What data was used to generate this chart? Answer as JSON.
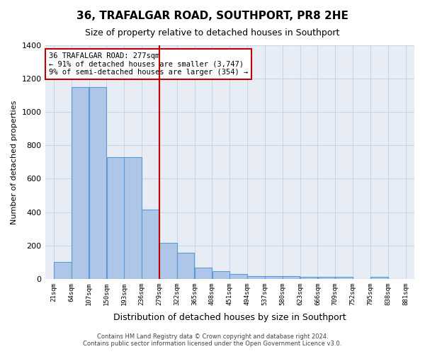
{
  "title": "36, TRAFALGAR ROAD, SOUTHPORT, PR8 2HE",
  "subtitle": "Size of property relative to detached houses in Southport",
  "xlabel": "Distribution of detached houses by size in Southport",
  "ylabel": "Number of detached properties",
  "footer_line1": "Contains HM Land Registry data © Crown copyright and database right 2024.",
  "footer_line2": "Contains public sector information licensed under the Open Government Licence v3.0.",
  "annotation_line1": "36 TRAFALGAR ROAD: 277sqm",
  "annotation_line2": "← 91% of detached houses are smaller (3,747)",
  "annotation_line3": "9% of semi-detached houses are larger (354) →",
  "property_size": 277,
  "bar_left_edges": [
    21,
    64,
    107,
    150,
    193,
    236,
    279,
    322,
    365,
    408,
    451,
    494,
    537,
    580,
    623,
    666,
    709,
    752,
    795,
    838
  ],
  "bar_widths": [
    43,
    43,
    43,
    43,
    43,
    43,
    43,
    43,
    43,
    43,
    43,
    43,
    43,
    43,
    43,
    43,
    43,
    43,
    43,
    43
  ],
  "bar_heights": [
    100,
    1150,
    1150,
    730,
    730,
    415,
    215,
    155,
    65,
    45,
    30,
    18,
    18,
    18,
    10,
    10,
    10,
    0,
    10,
    0
  ],
  "bar_color": "#aec6e8",
  "bar_edge_color": "#5b9bd5",
  "vline_x": 279,
  "vline_color": "#c00000",
  "grid_color": "#c8d4e8",
  "background_color": "#e8edf5",
  "ylim": [
    0,
    1400
  ],
  "yticks": [
    0,
    200,
    400,
    600,
    800,
    1000,
    1200,
    1400
  ],
  "xtick_labels": [
    "21sqm",
    "64sqm",
    "107sqm",
    "150sqm",
    "193sqm",
    "236sqm",
    "279sqm",
    "322sqm",
    "365sqm",
    "408sqm",
    "451sqm",
    "494sqm",
    "537sqm",
    "580sqm",
    "623sqm",
    "666sqm",
    "709sqm",
    "752sqm",
    "795sqm",
    "838sqm",
    "881sqm"
  ]
}
